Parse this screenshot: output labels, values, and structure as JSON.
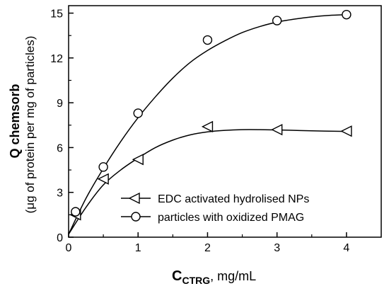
{
  "chart_data": {
    "type": "line",
    "x_axis": {
      "label_main": "C",
      "label_sub": "CTRG",
      "label_unit": ", mg/mL",
      "range": [
        0,
        4.5
      ],
      "ticks": [
        0,
        1,
        2,
        3,
        4
      ]
    },
    "y_axis": {
      "label_main": "Q chemsorb",
      "label_sub": "(μg of protein per mg of particles)",
      "range": [
        0,
        15.5
      ],
      "ticks": [
        0,
        3,
        6,
        9,
        12,
        15
      ]
    },
    "series": [
      {
        "name": "EDC activated hydrolised NPs",
        "marker": "triangle-left",
        "x": [
          0,
          0.1,
          0.5,
          1,
          2,
          3,
          4
        ],
        "y": [
          0.2,
          1.5,
          3.9,
          5.2,
          7.4,
          7.2,
          7.1
        ],
        "curve_x": [
          0,
          0.25,
          0.5,
          0.75,
          1,
          1.25,
          1.5,
          1.75,
          2,
          2.25,
          2.5,
          2.75,
          3,
          3.25,
          3.5,
          3.75,
          4
        ],
        "curve_y": [
          0.2,
          2.0,
          3.5,
          4.5,
          5.3,
          6.0,
          6.5,
          6.85,
          7.05,
          7.15,
          7.2,
          7.2,
          7.18,
          7.15,
          7.12,
          7.1,
          7.08
        ]
      },
      {
        "name": "particles with oxidized PMAG",
        "marker": "circle",
        "x": [
          0,
          0.1,
          0.5,
          1,
          2,
          3,
          4
        ],
        "y": [
          0.2,
          1.7,
          4.7,
          8.3,
          13.2,
          14.5,
          14.9
        ],
        "curve_x": [
          0,
          0.25,
          0.5,
          0.75,
          1,
          1.25,
          1.5,
          1.75,
          2,
          2.25,
          2.5,
          2.75,
          3,
          3.25,
          3.5,
          3.75,
          4
        ],
        "curve_y": [
          0.2,
          2.6,
          4.6,
          6.4,
          8.0,
          9.4,
          10.65,
          11.7,
          12.5,
          13.15,
          13.7,
          14.1,
          14.4,
          14.6,
          14.75,
          14.85,
          14.9
        ]
      }
    ],
    "legend": {
      "position": "bottom-right"
    }
  }
}
